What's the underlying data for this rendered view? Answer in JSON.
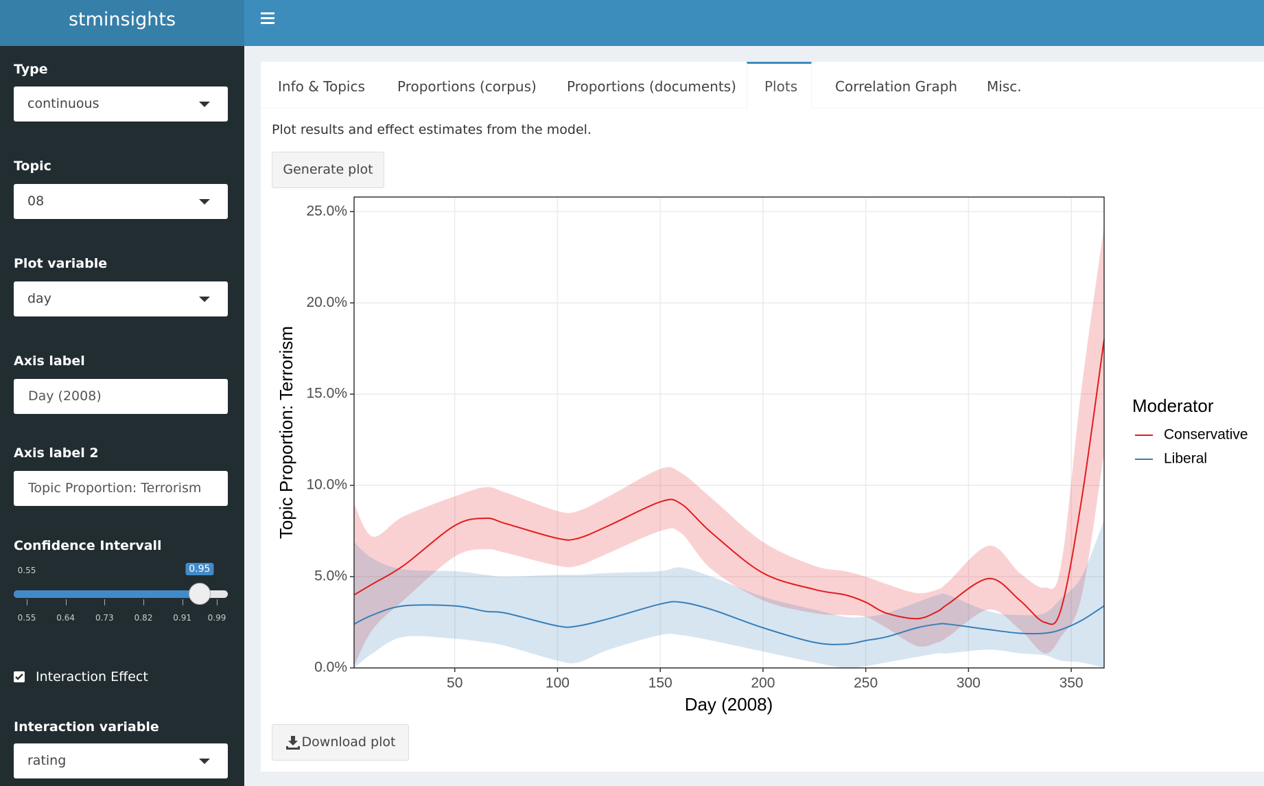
{
  "header": {
    "brand": "stminsights"
  },
  "sidebar": {
    "fields": [
      {
        "label": "Type",
        "value": "continuous"
      },
      {
        "label": "Topic",
        "value": "08"
      },
      {
        "label": "Plot variable",
        "value": "day"
      },
      {
        "label": "Axis label",
        "value": "Day (2008)"
      },
      {
        "label": "Axis label 2",
        "value": "Topic Proportion: Terrorism"
      }
    ],
    "slider": {
      "label": "Confidence Intervall",
      "min": 0.55,
      "value": 0.95,
      "ticks": [
        0.55,
        0.64,
        0.73,
        0.82,
        0.91,
        0.99
      ]
    },
    "checkbox": {
      "label": "Interaction Effect",
      "checked": true
    },
    "interaction": {
      "label": "Interaction variable",
      "value": "rating"
    }
  },
  "tabs": [
    "Info & Topics",
    "Proportions (corpus)",
    "Proportions (documents)",
    "Plots",
    "Correlation Graph",
    "Misc."
  ],
  "active_tab": 3,
  "description": "Plot results and effect estimates from the model.",
  "buttons": {
    "generate": "Generate plot",
    "download": "Download plot"
  },
  "chart_data": {
    "type": "line",
    "x_label": "Day (2008)",
    "y_label": "Topic Proportion: Terrorism",
    "legend_title": "Moderator",
    "legend_position": "right",
    "grid": true,
    "xlim": [
      1,
      366
    ],
    "xticks": [
      50,
      100,
      150,
      200,
      250,
      300,
      350
    ],
    "ylim": [
      0,
      25.8
    ],
    "yticks": [
      {
        "value": 0,
        "label": "0.0%"
      },
      {
        "value": 5,
        "label": "5.0%"
      },
      {
        "value": 10,
        "label": "10.0%"
      },
      {
        "value": 15,
        "label": "15.0%"
      },
      {
        "value": 20,
        "label": "20.0%"
      },
      {
        "value": 25,
        "label": "25.0%"
      }
    ],
    "x": [
      1,
      10,
      25,
      50,
      65,
      75,
      100,
      110,
      125,
      150,
      160,
      175,
      200,
      225,
      240,
      250,
      260,
      275,
      285,
      290,
      310,
      325,
      337,
      345,
      355,
      366
    ],
    "series": [
      {
        "name": "Conservative",
        "color": "#e41a1c",
        "values": [
          4.0,
          4.6,
          5.6,
          7.8,
          8.2,
          7.9,
          7.1,
          7.1,
          7.8,
          9.1,
          9.0,
          7.4,
          5.2,
          4.3,
          4.0,
          3.6,
          3.0,
          2.7,
          3.1,
          3.5,
          4.9,
          3.7,
          2.5,
          3.2,
          9.2,
          18.0
        ],
        "upper": [
          9.0,
          7.2,
          8.3,
          9.4,
          9.9,
          9.6,
          8.6,
          8.6,
          9.4,
          10.9,
          10.7,
          9.3,
          6.9,
          5.6,
          5.3,
          5.0,
          4.6,
          4.1,
          4.3,
          4.7,
          6.7,
          5.2,
          4.4,
          5.6,
          15.3,
          24.2
        ],
        "lower": [
          0.1,
          2.1,
          3.7,
          6.1,
          6.5,
          6.3,
          5.6,
          5.6,
          6.3,
          7.5,
          7.4,
          5.4,
          3.7,
          3.0,
          2.9,
          2.8,
          2.2,
          1.2,
          1.4,
          1.7,
          3.2,
          2.1,
          0.8,
          1.7,
          3.9,
          11.8
        ]
      },
      {
        "name": "Liberal",
        "color": "#377eb8",
        "values": [
          2.4,
          2.9,
          3.4,
          3.4,
          3.1,
          3.0,
          2.3,
          2.3,
          2.7,
          3.5,
          3.6,
          3.2,
          2.2,
          1.4,
          1.3,
          1.5,
          1.7,
          2.2,
          2.4,
          2.4,
          2.1,
          1.9,
          1.9,
          2.1,
          2.6,
          3.4
        ],
        "upper": [
          6.9,
          6.0,
          5.4,
          5.3,
          5.1,
          5.0,
          5.1,
          5.1,
          5.2,
          5.3,
          5.5,
          5.0,
          3.9,
          3.2,
          2.8,
          2.8,
          3.0,
          3.6,
          4.0,
          4.0,
          3.1,
          2.9,
          3.0,
          3.8,
          5.0,
          8.1
        ],
        "lower": [
          0.0,
          0.8,
          1.7,
          1.6,
          1.4,
          1.2,
          0.4,
          0.3,
          1.0,
          1.8,
          1.8,
          1.5,
          0.9,
          0.3,
          0.0,
          0.1,
          0.3,
          0.6,
          0.8,
          0.8,
          1.0,
          0.8,
          0.7,
          0.4,
          0.3,
          0.0
        ]
      }
    ]
  }
}
